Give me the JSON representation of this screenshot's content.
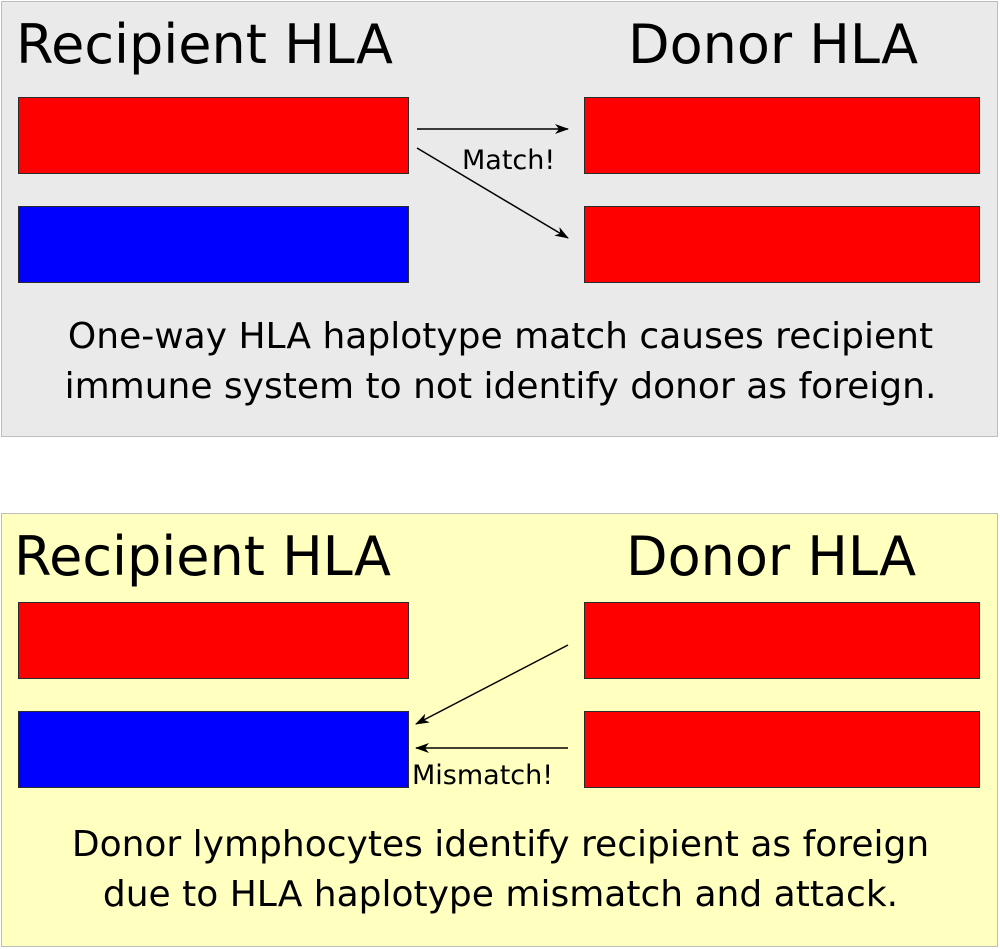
{
  "colors": {
    "red_haplotype": "#ff0000",
    "blue_haplotype": "#0000ff",
    "top_panel_bg": "#eaeaea",
    "bottom_panel_bg": "#ffffc0"
  },
  "match_panel": {
    "recipient_heading": "Recipient HLA",
    "donor_heading": "Donor HLA",
    "arrow_label": "Match!",
    "caption_line1": "One-way HLA haplotype match causes recipient",
    "caption_line2": "immune system to not identify donor as foreign."
  },
  "mismatch_panel": {
    "recipient_heading": "Recipient HLA",
    "donor_heading": "Donor HLA",
    "arrow_label": "Mismatch!",
    "caption_line1": "Donor lymphocytes identify recipient as foreign",
    "caption_line2": "due to HLA haplotype mismatch and attack."
  }
}
